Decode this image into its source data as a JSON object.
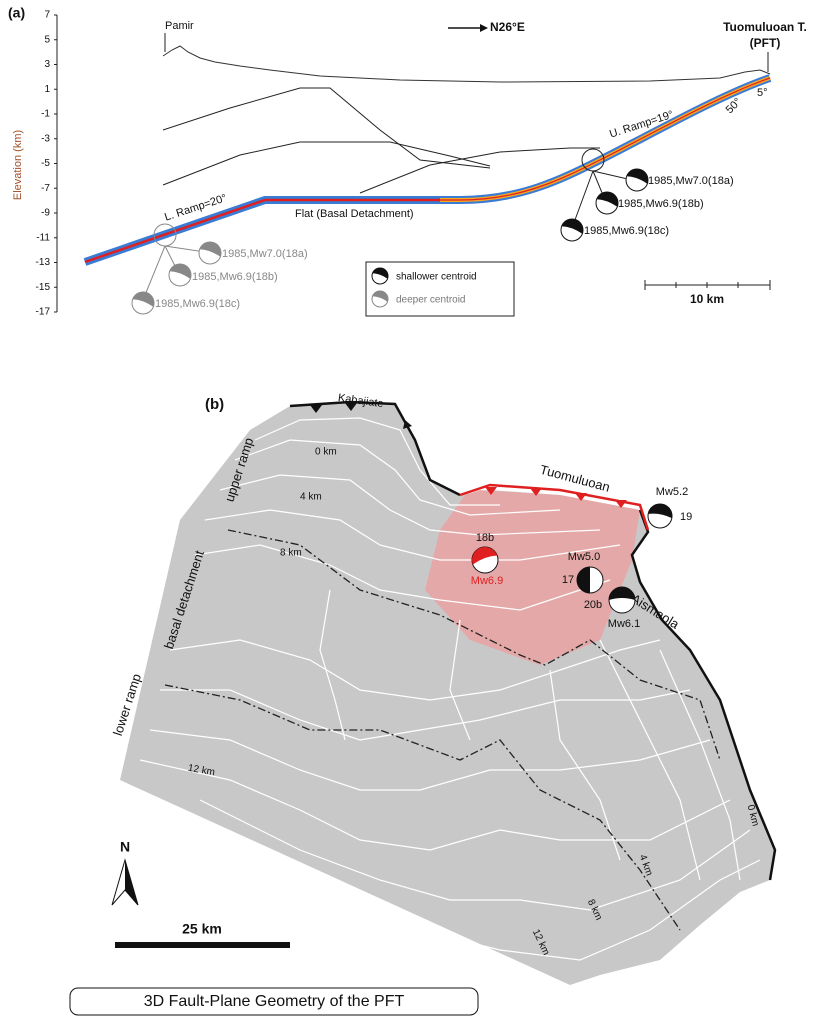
{
  "panel_a": {
    "label": "(a)",
    "pamir": "Pamir",
    "direction": "N26°E",
    "fault_name": "Tuomuluoan T.",
    "fault_abbrev": "(PFT)",
    "y_axis_label": "Elevation (km)",
    "y_ticks": [
      7,
      5,
      3,
      1,
      -1,
      -3,
      -5,
      -7,
      -9,
      -11,
      -13,
      -15,
      -17
    ],
    "lower_ramp": "L. Ramp=20°",
    "flat": "Flat (Basal Detachment)",
    "upper_ramp": "U. Ramp=19°",
    "dip_steep": "50°",
    "dip_shallow": "5°",
    "shallow_events": [
      "1985,Mw7.0(18a)",
      "1985,Mw6.9(18b)",
      "1985,Mw6.9(18c)"
    ],
    "deep_events": [
      "1985,Mw7.0(18a)",
      "1985,Mw6.9(18b)",
      "1985,Mw6.9(18c)"
    ],
    "legend": [
      "shallower centroid",
      "deeper centroid"
    ],
    "scale": "10 km"
  },
  "panel_b": {
    "label": "(b)",
    "kabajiate": "Kabajiate",
    "tuomuluoan": "Tuomuluoan",
    "aismaola": "Aismaola",
    "upper_ramp": "upper ramp",
    "basal_detachment": "basal detachment",
    "lower_ramp": "lower ramp",
    "left_contours": [
      "0 km",
      "4 km",
      "8 km",
      "12 km"
    ],
    "right_contours": [
      "0 km",
      "4 km",
      "8 km",
      "12 km"
    ],
    "events": {
      "mw52": "Mw5.2",
      "id19": "19",
      "id18b": "18b",
      "mw69": "Mw6.9",
      "mw50": "Mw5.0",
      "id17": "17",
      "id20b": "20b",
      "mw61": "Mw6.1"
    },
    "north": "N",
    "scale": "25 km",
    "caption": "3D Fault-Plane Geometry of the PFT"
  }
}
